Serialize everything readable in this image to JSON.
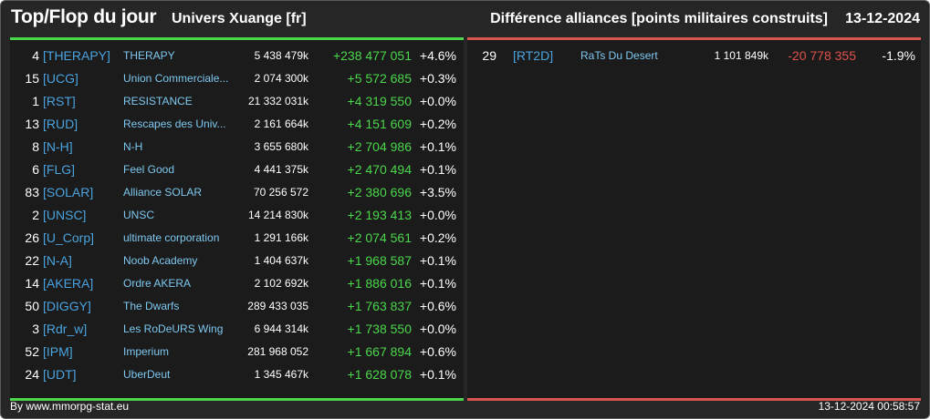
{
  "header": {
    "title": "Top/Flop du jour",
    "subtitle": "Univers Xuange [fr]",
    "description": "Différence alliances [points militaires construits]",
    "date": "13-12-2024"
  },
  "colors": {
    "positive": "#4bd64b",
    "negative": "#e0524c",
    "tag": "#4aa3df"
  },
  "top": [
    {
      "rank": "4",
      "tag": "[THERAPY]",
      "name": "THERAPY",
      "points": "5 438 479k",
      "diff": "+238 477 051",
      "pct": "+4.6%"
    },
    {
      "rank": "15",
      "tag": "[UCG]",
      "name": "Union Commerciale...",
      "points": "2 074 300k",
      "diff": "+5 572 685",
      "pct": "+0.3%"
    },
    {
      "rank": "1",
      "tag": "[RST]",
      "name": "RESISTANCE",
      "points": "21 332 031k",
      "diff": "+4 319 550",
      "pct": "+0.0%"
    },
    {
      "rank": "13",
      "tag": "[RUD]",
      "name": "Rescapes des Univ...",
      "points": "2 161 664k",
      "diff": "+4 151 609",
      "pct": "+0.2%"
    },
    {
      "rank": "8",
      "tag": "[N-H]",
      "name": "N-H",
      "points": "3 655 680k",
      "diff": "+2 704 986",
      "pct": "+0.1%"
    },
    {
      "rank": "6",
      "tag": "[FLG]",
      "name": "Feel Good",
      "points": "4 441 375k",
      "diff": "+2 470 494",
      "pct": "+0.1%"
    },
    {
      "rank": "83",
      "tag": "[SOLAR]",
      "name": "Alliance SOLAR",
      "points": "70 256 572",
      "diff": "+2 380 696",
      "pct": "+3.5%"
    },
    {
      "rank": "2",
      "tag": "[UNSC]",
      "name": "UNSC",
      "points": "14 214 830k",
      "diff": "+2 193 413",
      "pct": "+0.0%"
    },
    {
      "rank": "26",
      "tag": "[U_Corp]",
      "name": "ultimate corporation",
      "points": "1 291 166k",
      "diff": "+2 074 561",
      "pct": "+0.2%"
    },
    {
      "rank": "22",
      "tag": "[N-A]",
      "name": "Noob Academy",
      "points": "1 404 637k",
      "diff": "+1 968 587",
      "pct": "+0.1%"
    },
    {
      "rank": "14",
      "tag": "[AKERA]",
      "name": "Ordre AKERA",
      "points": "2 102 692k",
      "diff": "+1 886 016",
      "pct": "+0.1%"
    },
    {
      "rank": "50",
      "tag": "[DIGGY]",
      "name": "The Dwarfs",
      "points": "289 433 035",
      "diff": "+1 763 837",
      "pct": "+0.6%"
    },
    {
      "rank": "3",
      "tag": "[Rdr_w]",
      "name": "Les RoDeURS Wing",
      "points": "6 944 314k",
      "diff": "+1 738 550",
      "pct": "+0.0%"
    },
    {
      "rank": "52",
      "tag": "[IPM]",
      "name": "Imperium",
      "points": "281 968 052",
      "diff": "+1 667 894",
      "pct": "+0.6%"
    },
    {
      "rank": "24",
      "tag": "[UDT]",
      "name": "UberDeut",
      "points": "1 345 467k",
      "diff": "+1 628 078",
      "pct": "+0.1%"
    }
  ],
  "flop": [
    {
      "rank": "29",
      "tag": "[RT2D]",
      "name": "RaTs Du Desert",
      "points": "1 101 849k",
      "diff": "-20 778 355",
      "pct": "-1.9%"
    }
  ],
  "footer": {
    "source": "By www.mmorpg-stat.eu",
    "timestamp": "13-12-2024 00:58:57"
  }
}
